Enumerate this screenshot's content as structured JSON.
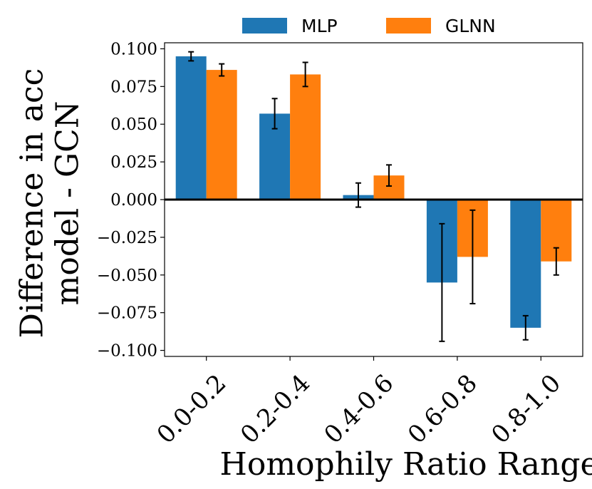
{
  "chart_data": {
    "type": "bar",
    "title": "",
    "xlabel": "Homophily Ratio Range",
    "ylabel_lines": [
      "Difference in acc",
      "model - GCN"
    ],
    "categories": [
      "0.0-0.2",
      "0.2-0.4",
      "0.4-0.6",
      "0.6-0.8",
      "0.8-1.0"
    ],
    "series": [
      {
        "name": "MLP",
        "color": "#1f77b4",
        "values": [
          0.095,
          0.057,
          0.003,
          -0.055,
          -0.085
        ],
        "errors": [
          0.003,
          0.01,
          0.008,
          0.039,
          0.008
        ]
      },
      {
        "name": "GLNN",
        "color": "#ff7f0e",
        "values": [
          0.086,
          0.083,
          0.016,
          -0.038,
          -0.041
        ],
        "errors": [
          0.004,
          0.008,
          0.007,
          0.031,
          0.009
        ]
      }
    ],
    "ylim": [
      -0.104,
      0.104
    ],
    "yticks": [
      0.1,
      0.075,
      0.05,
      0.025,
      0.0,
      -0.025,
      -0.05,
      -0.075,
      -0.1
    ],
    "ytick_labels": [
      "0.100",
      "0.075",
      "0.050",
      "0.025",
      "0.000",
      "−0.025",
      "−0.050",
      "−0.075",
      "−0.100"
    ],
    "zero_line": true,
    "legend_position": "top-center",
    "grid": false
  }
}
